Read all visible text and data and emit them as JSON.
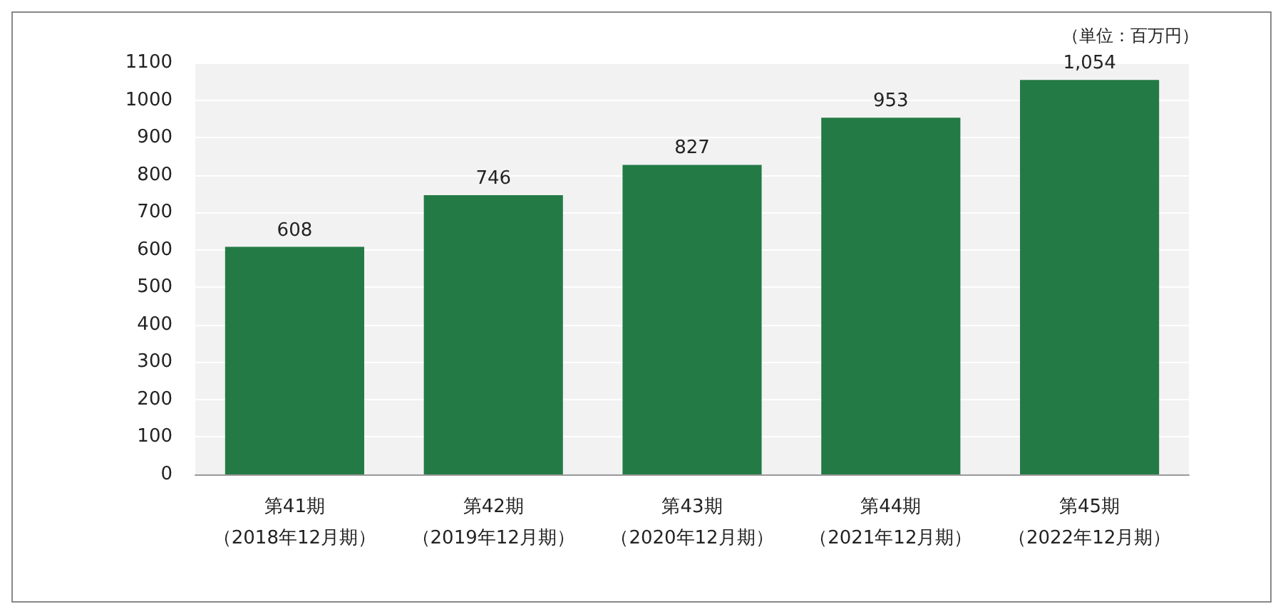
{
  "chart_data": {
    "type": "bar",
    "categories": [
      "第41期（2018年12月期）",
      "第42期（2019年12月期）",
      "第43期（2020年12月期）",
      "第44期（2021年12月期）",
      "第45期（2022年12月期）"
    ],
    "values": [
      608,
      746,
      827,
      953,
      1054
    ],
    "value_labels": [
      "608",
      "746",
      "827",
      "953",
      "1,054"
    ],
    "color": "#237a45",
    "ylim": [
      0,
      1100
    ],
    "yticks": [
      0,
      100,
      200,
      300,
      400,
      500,
      600,
      700,
      800,
      900,
      1000,
      1100
    ],
    "grid": "y",
    "annotations": [
      "（単位：百万円）"
    ]
  }
}
